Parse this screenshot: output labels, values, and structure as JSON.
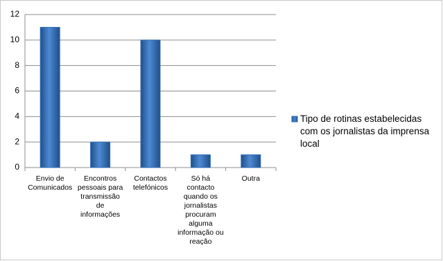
{
  "chart_data": {
    "type": "bar",
    "categories": [
      "Envio de Comunicados",
      "Encontros pessoais para transmissão de informações",
      "Contactos telefónicos",
      "Só há contacto quando os jornalistas procuram alguma informação ou reação",
      "Outra"
    ],
    "series": [
      {
        "name": "Tipo de rotinas estabelecidas com os jornalistas da imprensa local",
        "color": "#2f6db5",
        "values": [
          11,
          2,
          10,
          1,
          1
        ]
      }
    ],
    "ylim": [
      0,
      12
    ],
    "yticks": [
      0,
      2,
      4,
      6,
      8,
      10,
      12
    ],
    "grid": true,
    "legend": "right"
  }
}
